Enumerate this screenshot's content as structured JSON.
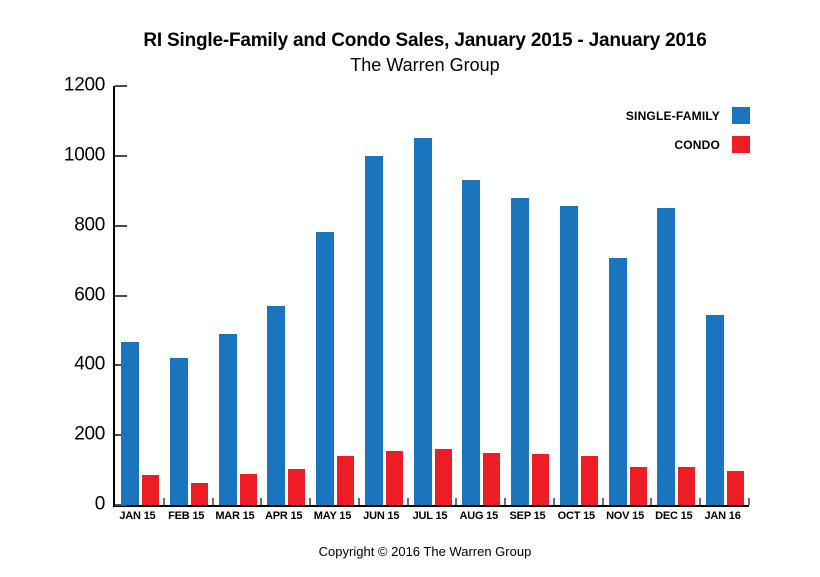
{
  "header": {
    "title": "RI Single-Family and Condo Sales, January 2015 - January 2016",
    "subtitle": "The Warren Group"
  },
  "legend": [
    {
      "label": "SINGLE-FAMILY",
      "color": "#1b75bc"
    },
    {
      "label": "CONDO",
      "color": "#ee1c25"
    }
  ],
  "footer": {
    "copyright": "Copyright © 2016 The Warren Group"
  },
  "chart_data": {
    "type": "bar",
    "title": "RI Single-Family and Condo Sales, January 2015 - January 2016",
    "subtitle": "The Warren Group",
    "categories": [
      "JAN 15",
      "FEB 15",
      "MAR 15",
      "APR 15",
      "MAY 15",
      "JUN 15",
      "JUL 15",
      "AUG 15",
      "SEP 15",
      "OCT 15",
      "NOV 15",
      "DEC 15",
      "JAN 16"
    ],
    "series": [
      {
        "name": "SINGLE-FAMILY",
        "color": "#1b75bc",
        "values": [
          468,
          420,
          490,
          570,
          783,
          1000,
          1050,
          930,
          880,
          855,
          708,
          850,
          545
        ]
      },
      {
        "name": "CONDO",
        "color": "#ee1c25",
        "values": [
          87,
          62,
          89,
          104,
          139,
          154,
          159,
          150,
          146,
          140,
          109,
          108,
          98
        ]
      }
    ],
    "xlabel": "",
    "ylabel": "",
    "ylim": [
      0,
      1200
    ],
    "yticks": [
      0,
      200,
      400,
      600,
      800,
      1000,
      1200
    ],
    "grid": false,
    "legend_position": "top-right"
  }
}
